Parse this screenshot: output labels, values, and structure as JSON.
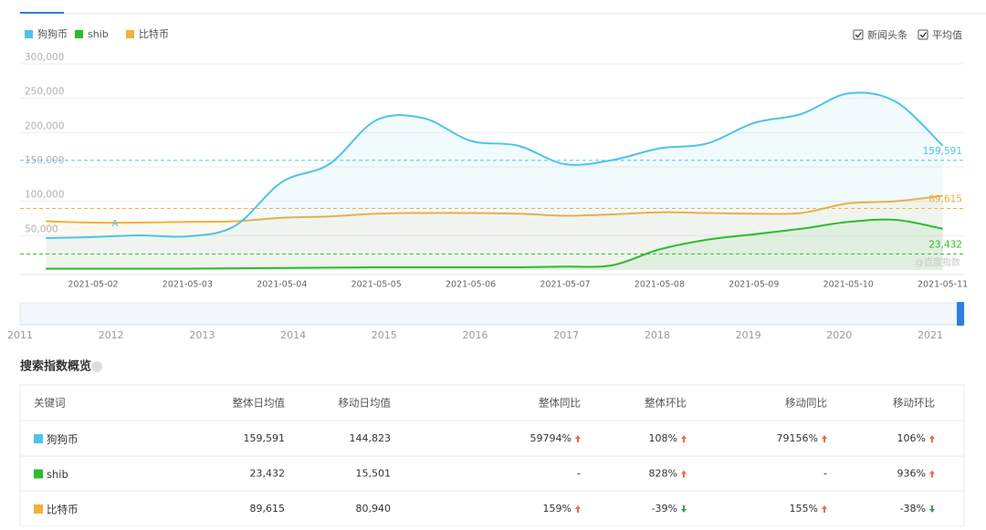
{
  "chart_data": {
    "type": "line",
    "categories": [
      null,
      "2021-05-02",
      null,
      "2021-05-03",
      null,
      "2021-05-04",
      null,
      "2021-05-05",
      null,
      "2021-05-06",
      null,
      "2021-05-07",
      null,
      "2021-05-08",
      null,
      "2021-05-09",
      null,
      "2021-05-10",
      null,
      "2021-05-11"
    ],
    "series": [
      {
        "name": "狗狗币",
        "color": "#4fc3e8",
        "average": 159591,
        "average_label": "159,591",
        "values": [
          46500,
          48000,
          50500,
          49000,
          64000,
          128000,
          154000,
          218000,
          221000,
          188000,
          181000,
          154000,
          160000,
          177000,
          184000,
          214000,
          227000,
          257000,
          245000,
          181000
        ]
      },
      {
        "name": "shib",
        "color": "#2dbb2d",
        "average": 23432,
        "average_label": "23,432",
        "values": [
          2000,
          2000,
          2000,
          2000,
          2500,
          3000,
          3500,
          4000,
          4000,
          4000,
          4000,
          5000,
          7000,
          30000,
          44000,
          52000,
          60000,
          70000,
          73000,
          60000
        ]
      },
      {
        "name": "比特币",
        "color": "#f2b03c",
        "average": 89615,
        "average_label": "89,615",
        "values": [
          71000,
          69000,
          69000,
          70000,
          71000,
          76000,
          78000,
          82000,
          83000,
          83000,
          82000,
          79000,
          81000,
          84000,
          83000,
          82000,
          83000,
          97000,
          100000,
          108000
        ]
      }
    ],
    "ylim": [
      0,
      300000
    ],
    "yticks": [
      {
        "value": 50000,
        "label": "50,000"
      },
      {
        "value": 100000,
        "label": "100,000"
      },
      {
        "value": 150000,
        "label": "150,000"
      },
      {
        "value": 200000,
        "label": "200,000"
      },
      {
        "value": 250000,
        "label": "250,000"
      },
      {
        "value": 300000,
        "label": "300,000"
      }
    ],
    "grid": true,
    "annotation": "A",
    "watermark": "@百度指数"
  },
  "options": [
    "新闻头条",
    "平均值"
  ],
  "timeline_years": [
    "2011",
    "2012",
    "2013",
    "2014",
    "2015",
    "2016",
    "2017",
    "2018",
    "2019",
    "2020",
    "2021"
  ],
  "table": {
    "title": "搜索指数概览",
    "header": [
      "关键词",
      "整体日均值",
      "移动日均值",
      "整体同比",
      "整体环比",
      "移动同比",
      "移动环比"
    ],
    "rows": [
      [
        "狗狗币",
        "159,591",
        "144,823",
        "59794%",
        "108%",
        "79156%",
        "106%"
      ],
      [
        "shib",
        "23,432",
        "15,501",
        "-",
        "828%",
        "-",
        "936%"
      ],
      [
        "比特币",
        "89,615",
        "80,940",
        "159%",
        "-39%",
        "155%",
        "-38%"
      ]
    ]
  }
}
